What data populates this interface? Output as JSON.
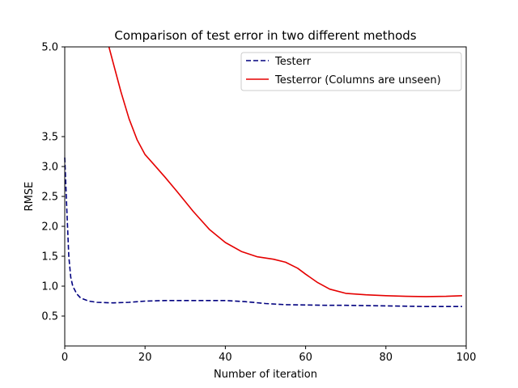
{
  "chart_data": {
    "type": "line",
    "title": "Comparison of test error in two different methods",
    "xlabel": "Number of iteration",
    "ylabel": "RMSE",
    "xlim": [
      0,
      100
    ],
    "ylim": [
      0,
      5.0
    ],
    "xticks": [
      0,
      20,
      40,
      60,
      80,
      100
    ],
    "xtick_labels": [
      "0",
      "20",
      "40",
      "60",
      "80",
      "100"
    ],
    "yticks": [
      0.5,
      1.0,
      1.5,
      2.0,
      2.5,
      3.0,
      3.5,
      5.0
    ],
    "ytick_labels": [
      "0.5",
      "1.0",
      "1.5",
      "2.0",
      "2.5",
      "3.0",
      "3.5",
      "5.0"
    ],
    "grid": false,
    "legend_position": "top-right",
    "series": [
      {
        "name": "Testerr",
        "color": "#00007f",
        "style": "dashed",
        "x": [
          0,
          0.5,
          1,
          1.5,
          2,
          3,
          4,
          6,
          8,
          12,
          16,
          20,
          25,
          30,
          35,
          40,
          45,
          50,
          55,
          60,
          65,
          70,
          75,
          80,
          85,
          90,
          95,
          99
        ],
        "y": [
          3.15,
          2.3,
          1.5,
          1.15,
          1.0,
          0.87,
          0.8,
          0.75,
          0.73,
          0.72,
          0.73,
          0.75,
          0.76,
          0.76,
          0.76,
          0.76,
          0.74,
          0.71,
          0.69,
          0.685,
          0.68,
          0.68,
          0.675,
          0.67,
          0.665,
          0.66,
          0.66,
          0.66
        ]
      },
      {
        "name": "Testerror (Columns are unseen)",
        "color": "#e50000",
        "style": "solid",
        "x": [
          11,
          12,
          14,
          16,
          18,
          20,
          22,
          25,
          28,
          32,
          36,
          40,
          44,
          48,
          52,
          55,
          58,
          60,
          63,
          66,
          70,
          75,
          80,
          85,
          90,
          95,
          99
        ],
        "y": [
          5.0,
          4.75,
          4.25,
          3.8,
          3.45,
          3.2,
          3.05,
          2.82,
          2.58,
          2.25,
          1.95,
          1.73,
          1.58,
          1.49,
          1.45,
          1.4,
          1.3,
          1.2,
          1.06,
          0.95,
          0.88,
          0.855,
          0.84,
          0.83,
          0.825,
          0.83,
          0.84
        ]
      }
    ]
  }
}
